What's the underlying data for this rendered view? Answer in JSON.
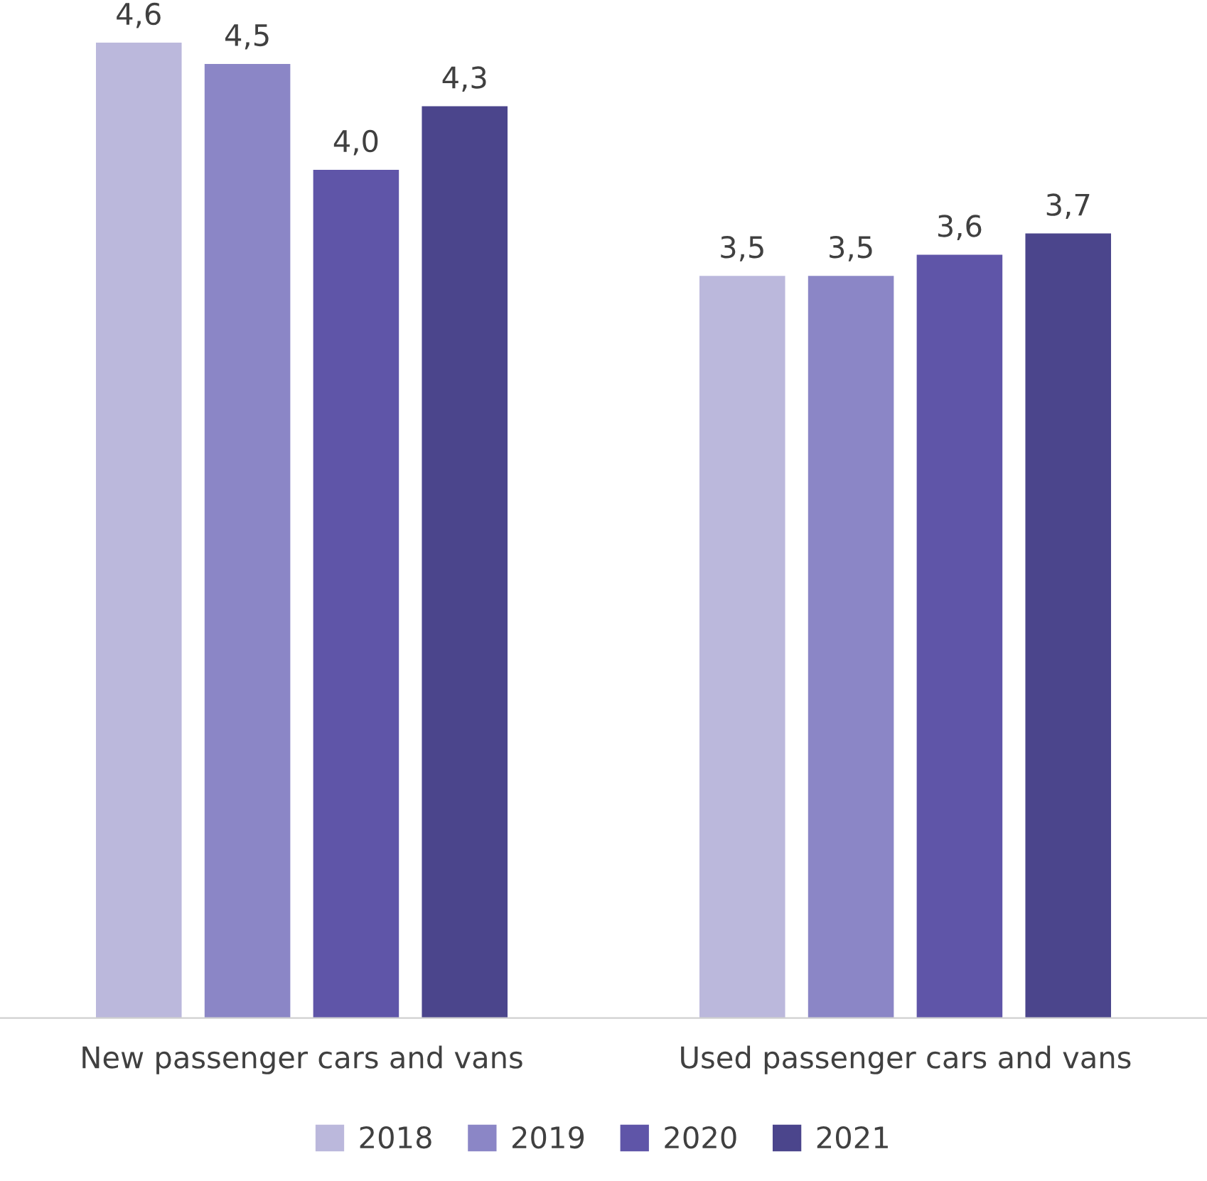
{
  "chart_data": {
    "type": "bar",
    "categories": [
      "New passenger cars and vans",
      "Used passenger cars and vans"
    ],
    "series": [
      {
        "name": "2018",
        "color": "#bbb8dc",
        "values": [
          4.6,
          3.5
        ],
        "value_labels": [
          "4,6",
          "3,5"
        ]
      },
      {
        "name": "2019",
        "color": "#8b86c6",
        "values": [
          4.5,
          3.5
        ],
        "value_labels": [
          "4,5",
          "3,5"
        ]
      },
      {
        "name": "2020",
        "color": "#5f55a8",
        "values": [
          4.0,
          3.6
        ],
        "value_labels": [
          "4,0",
          "3,6"
        ]
      },
      {
        "name": "2021",
        "color": "#4b458c",
        "values": [
          4.3,
          3.7
        ],
        "value_labels": [
          "4,3",
          "3,7"
        ]
      }
    ],
    "legend": "bottom",
    "grid": false
  }
}
